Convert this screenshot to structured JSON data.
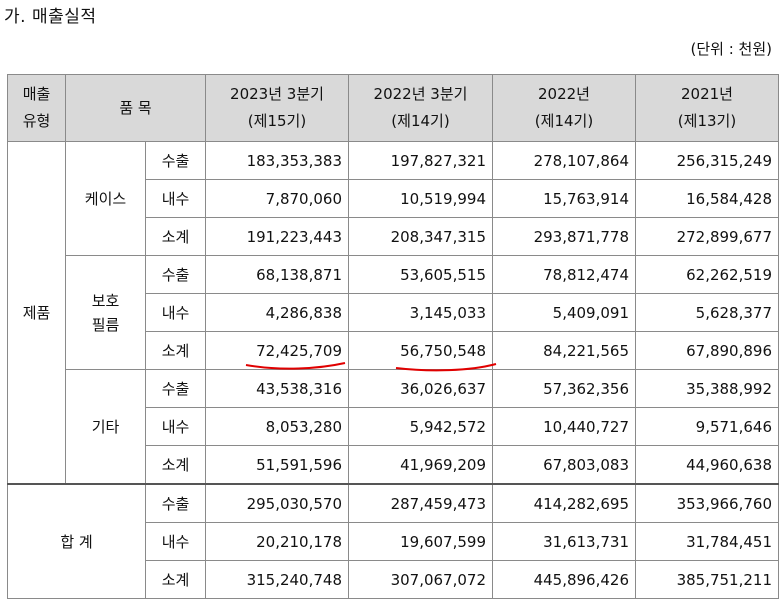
{
  "title": "가. 매출실적",
  "unit": "(단위 : 천원)",
  "header": {
    "type": "매출\n유형",
    "item": "품 목",
    "col1": "2023년 3분기\n(제15기)",
    "col2": "2022년 3분기\n(제14기)",
    "col3": "2022년\n(제14기)",
    "col4": "2021년\n(제13기)"
  },
  "product_label": "제품",
  "total_label": "합 계",
  "groups": [
    {
      "name": "케이스",
      "rows": [
        {
          "type": "수출",
          "v": [
            "183,353,383",
            "197,827,321",
            "278,107,864",
            "256,315,249"
          ]
        },
        {
          "type": "내수",
          "v": [
            "7,870,060",
            "10,519,994",
            "15,763,914",
            "16,584,428"
          ]
        },
        {
          "type": "소계",
          "v": [
            "191,223,443",
            "208,347,315",
            "293,871,778",
            "272,899,677"
          ]
        }
      ]
    },
    {
      "name": "보호\n필름",
      "rows": [
        {
          "type": "수출",
          "v": [
            "68,138,871",
            "53,605,515",
            "78,812,474",
            "62,262,519"
          ]
        },
        {
          "type": "내수",
          "v": [
            "4,286,838",
            "3,145,033",
            "5,409,091",
            "5,628,377"
          ]
        },
        {
          "type": "소계",
          "v": [
            "72,425,709",
            "56,750,548",
            "84,221,565",
            "67,890,896"
          ]
        }
      ]
    },
    {
      "name": "기타",
      "rows": [
        {
          "type": "수출",
          "v": [
            "43,538,316",
            "36,026,637",
            "57,362,356",
            "35,388,992"
          ]
        },
        {
          "type": "내수",
          "v": [
            "8,053,280",
            "5,942,572",
            "10,440,727",
            "9,571,646"
          ]
        },
        {
          "type": "소계",
          "v": [
            "51,591,596",
            "41,969,209",
            "67,803,083",
            "44,960,638"
          ]
        }
      ]
    }
  ],
  "total": [
    {
      "type": "수출",
      "v": [
        "295,030,570",
        "287,459,473",
        "414,282,695",
        "353,966,760"
      ]
    },
    {
      "type": "내수",
      "v": [
        "20,210,178",
        "19,607,599",
        "31,613,731",
        "31,784,451"
      ]
    },
    {
      "type": "소계",
      "v": [
        "315,240,748",
        "307,067,072",
        "445,896,426",
        "385,751,211"
      ]
    }
  ],
  "annotation_color": "#e00000"
}
